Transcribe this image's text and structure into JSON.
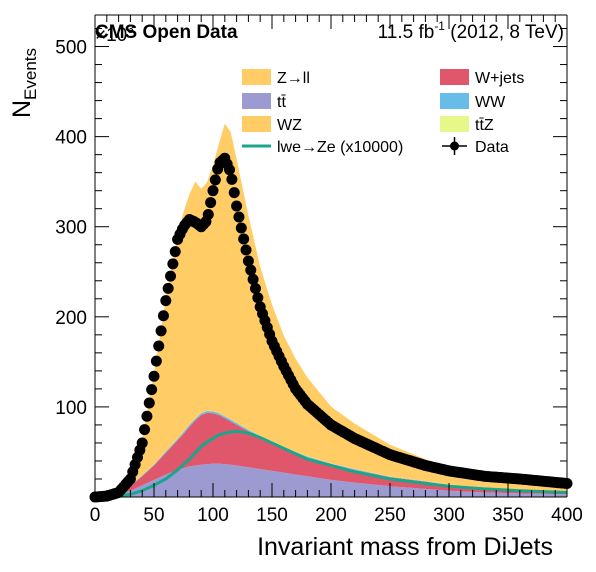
{
  "header": {
    "experiment": "CMS Open Data",
    "lumi_prefix": "11.5 fb",
    "lumi_sup": "-1",
    "lumi_suffix": " (2012, 8 TeV)"
  },
  "chart_data": {
    "type": "area",
    "xlabel": "Invariant mass from DiJets",
    "ylabel_main": "N",
    "ylabel_sub": "Events",
    "y_multiplier": "×10",
    "y_multiplier_exp": "3",
    "xlim": [
      0,
      400
    ],
    "ylim": [
      0,
      535
    ],
    "x_ticks": [
      0,
      50,
      100,
      150,
      200,
      250,
      300,
      350,
      400
    ],
    "y_ticks": [
      100,
      200,
      300,
      400,
      500
    ],
    "grid": false,
    "legend_position": "top-right",
    "x": [
      0,
      10,
      20,
      30,
      40,
      50,
      60,
      70,
      75,
      80,
      85,
      90,
      95,
      100,
      105,
      110,
      115,
      120,
      130,
      140,
      150,
      160,
      170,
      180,
      200,
      220,
      250,
      280,
      300,
      330,
      360,
      400
    ],
    "stack": [
      {
        "name": "tt̄",
        "color": "#9b9bd1",
        "values": [
          0,
          1,
          3,
          7,
          13,
          19,
          25,
          30,
          32,
          34,
          35,
          36,
          36.5,
          37,
          37,
          36.5,
          36,
          35,
          33,
          31,
          29,
          27,
          25,
          23,
          19,
          16,
          12,
          9,
          7,
          5,
          4,
          3
        ]
      },
      {
        "name": "W+jets",
        "color": "#e0576b",
        "values": [
          0,
          1,
          2,
          5,
          10,
          16,
          24,
          33,
          38,
          44,
          50,
          55,
          57,
          56,
          54,
          51,
          48,
          45,
          40,
          35,
          31,
          27,
          24,
          21,
          17,
          14,
          10,
          8,
          6,
          4,
          3,
          2
        ]
      },
      {
        "name": "WW",
        "color": "#67bde8",
        "values": [
          0,
          0,
          0.5,
          0.5,
          1,
          1,
          1.5,
          1.5,
          2,
          2,
          2,
          2,
          2,
          2,
          2,
          2,
          2,
          2,
          1.5,
          1.5,
          1.5,
          1.5,
          1,
          1,
          1,
          1,
          0.5,
          0.5,
          0.5,
          0.5,
          0.5,
          0.5
        ]
      },
      {
        "name": "WZ",
        "color": "#ffcc66",
        "values": [
          0,
          0,
          0,
          0.5,
          0.5,
          0.5,
          1,
          1,
          1,
          1,
          1,
          1,
          1,
          1,
          1,
          1,
          1,
          1,
          1,
          1,
          1,
          0.5,
          0.5,
          0.5,
          0.5,
          0.5,
          0.5,
          0.5,
          0.5,
          0.5,
          0.5,
          0.5
        ]
      },
      {
        "name": "tt̄Z",
        "color": "#e8f78a",
        "values": [
          0,
          0,
          0,
          0,
          0,
          0,
          0,
          0,
          0,
          0,
          0,
          0,
          0,
          0,
          0,
          0,
          0,
          0,
          0,
          0,
          0,
          0,
          0,
          0,
          0,
          0,
          0,
          0,
          0,
          0,
          0,
          0
        ]
      },
      {
        "name": "Z→ll",
        "color": "#ffcc66",
        "values": [
          0,
          1,
          4,
          14,
          40,
          100,
          169,
          225,
          243,
          255,
          262,
          248,
          253,
          272,
          298,
          324,
          318,
          292,
          237,
          187,
          151,
          123,
          103,
          87,
          63,
          50,
          35,
          24,
          19,
          13,
          10,
          7
        ]
      }
    ],
    "signal": {
      "name": "lwe→Ze (x10000)",
      "color": "#1aa58c",
      "values": [
        0,
        0,
        1,
        3,
        7,
        13,
        20,
        30,
        36,
        42,
        49,
        56,
        61,
        65,
        69,
        71,
        72,
        73,
        71,
        66,
        60,
        54,
        48,
        42,
        35,
        28,
        20,
        15,
        12,
        9,
        7,
        5
      ]
    },
    "data": {
      "name": "Data",
      "color": "#000000",
      "values": [
        0,
        1,
        5,
        20,
        60,
        134,
        218,
        286,
        300,
        308,
        305,
        300,
        307,
        340,
        370,
        376,
        360,
        323,
        262,
        211,
        173,
        145,
        120,
        103,
        80,
        65,
        47,
        35,
        29,
        23,
        20,
        15
      ]
    },
    "legend": [
      {
        "label": "Z→ll",
        "kind": "box",
        "color": "#ffcc66"
      },
      {
        "label": "W+jets",
        "kind": "box",
        "color": "#e0576b"
      },
      {
        "label": "tt̄",
        "kind": "box",
        "color": "#9b9bd1"
      },
      {
        "label": "WW",
        "kind": "box",
        "color": "#67bde8"
      },
      {
        "label": "WZ",
        "kind": "box",
        "color": "#ffcc66"
      },
      {
        "label": "tt̄Z",
        "kind": "box",
        "color": "#e8f78a"
      },
      {
        "label": "lwe→Ze (x10000)",
        "kind": "line",
        "color": "#1aa58c"
      },
      {
        "label": "Data",
        "kind": "marker",
        "color": "#000000"
      }
    ]
  }
}
